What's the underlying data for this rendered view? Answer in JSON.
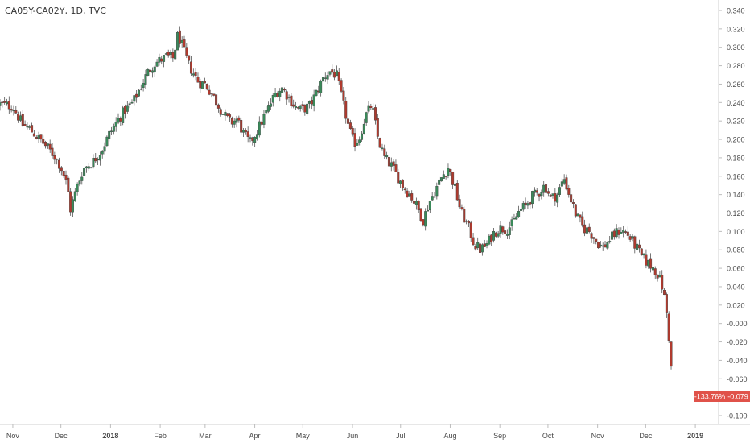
{
  "header": {
    "symbol_title": "CA05Y-CA02Y, 1D, TVC"
  },
  "price_labels": {
    "change": "-133.76%",
    "last": "-0.079"
  },
  "colors": {
    "up": "#3a8a5a",
    "down": "#b03a2e",
    "axis_text": "#4a4a4a",
    "grid": "#f0f0f0",
    "label_bg": "#e0524a",
    "label_text": "#ffffff"
  },
  "chart_data": {
    "type": "candlestick",
    "title": "CA05Y-CA02Y, 1D, TVC",
    "xlabel": "",
    "ylabel": "",
    "ylim": [
      -0.1,
      0.34
    ],
    "yticks": [
      "0.340",
      "0.320",
      "0.300",
      "0.280",
      "0.260",
      "0.240",
      "0.220",
      "0.200",
      "0.180",
      "0.160",
      "0.140",
      "0.120",
      "0.100",
      "0.080",
      "0.060",
      "0.040",
      "0.020",
      "-0.000",
      "-0.020",
      "-0.040",
      "-0.060",
      "-0.080",
      "-0.100"
    ],
    "ytick_values": [
      0.34,
      0.32,
      0.3,
      0.28,
      0.26,
      0.24,
      0.22,
      0.2,
      0.18,
      0.16,
      0.14,
      0.12,
      0.1,
      0.08,
      0.06,
      0.04,
      0.02,
      0.0,
      -0.02,
      -0.04,
      -0.06,
      -0.08,
      -0.1
    ],
    "xticks": [
      {
        "label": "Nov",
        "day": 0
      },
      {
        "label": "Dec",
        "day": 30
      },
      {
        "label": "2018",
        "day": 61
      },
      {
        "label": "Feb",
        "day": 92
      },
      {
        "label": "Mar",
        "day": 120
      },
      {
        "label": "Apr",
        "day": 151
      },
      {
        "label": "May",
        "day": 181
      },
      {
        "label": "Jun",
        "day": 212
      },
      {
        "label": "Jul",
        "day": 242
      },
      {
        "label": "Aug",
        "day": 273
      },
      {
        "label": "Sep",
        "day": 304
      },
      {
        "label": "Oct",
        "day": 334
      },
      {
        "label": "Nov",
        "day": 365
      },
      {
        "label": "Dec",
        "day": 395
      },
      {
        "label": "2019",
        "day": 426
      }
    ],
    "xrange_days": [
      -8,
      436
    ],
    "last_value": -0.079,
    "last_change": "-133.76%",
    "grid": false,
    "close_path": [
      [
        -8,
        0.238
      ],
      [
        0,
        0.236
      ],
      [
        6,
        0.216
      ],
      [
        10,
        0.212
      ],
      [
        14,
        0.205
      ],
      [
        18,
        0.198
      ],
      [
        22,
        0.19
      ],
      [
        26,
        0.182
      ],
      [
        30,
        0.17
      ],
      [
        34,
        0.15
      ],
      [
        36,
        0.124
      ],
      [
        40,
        0.148
      ],
      [
        44,
        0.168
      ],
      [
        50,
        0.176
      ],
      [
        56,
        0.19
      ],
      [
        60,
        0.205
      ],
      [
        66,
        0.222
      ],
      [
        70,
        0.232
      ],
      [
        75,
        0.24
      ],
      [
        80,
        0.258
      ],
      [
        84,
        0.272
      ],
      [
        88,
        0.282
      ],
      [
        92,
        0.286
      ],
      [
        96,
        0.29
      ],
      [
        100,
        0.288
      ],
      [
        103,
        0.314
      ],
      [
        106,
        0.3
      ],
      [
        110,
        0.28
      ],
      [
        116,
        0.262
      ],
      [
        120,
        0.26
      ],
      [
        124,
        0.25
      ],
      [
        128,
        0.238
      ],
      [
        132,
        0.226
      ],
      [
        136,
        0.218
      ],
      [
        140,
        0.222
      ],
      [
        144,
        0.206
      ],
      [
        148,
        0.196
      ],
      [
        152,
        0.208
      ],
      [
        156,
        0.222
      ],
      [
        160,
        0.236
      ],
      [
        164,
        0.25
      ],
      [
        168,
        0.256
      ],
      [
        172,
        0.246
      ],
      [
        176,
        0.236
      ],
      [
        180,
        0.232
      ],
      [
        185,
        0.236
      ],
      [
        190,
        0.252
      ],
      [
        194,
        0.268
      ],
      [
        198,
        0.274
      ],
      [
        202,
        0.27
      ],
      [
        206,
        0.24
      ],
      [
        210,
        0.21
      ],
      [
        213,
        0.196
      ],
      [
        216,
        0.2
      ],
      [
        220,
        0.225
      ],
      [
        224,
        0.238
      ],
      [
        228,
        0.2
      ],
      [
        232,
        0.18
      ],
      [
        236,
        0.172
      ],
      [
        240,
        0.16
      ],
      [
        244,
        0.148
      ],
      [
        248,
        0.14
      ],
      [
        252,
        0.128
      ],
      [
        256,
        0.112
      ],
      [
        260,
        0.132
      ],
      [
        264,
        0.146
      ],
      [
        268,
        0.16
      ],
      [
        272,
        0.17
      ],
      [
        276,
        0.146
      ],
      [
        280,
        0.12
      ],
      [
        284,
        0.106
      ],
      [
        288,
        0.086
      ],
      [
        292,
        0.08
      ],
      [
        296,
        0.086
      ],
      [
        300,
        0.098
      ],
      [
        304,
        0.104
      ],
      [
        308,
        0.102
      ],
      [
        312,
        0.108
      ],
      [
        316,
        0.122
      ],
      [
        320,
        0.128
      ],
      [
        324,
        0.138
      ],
      [
        328,
        0.142
      ],
      [
        332,
        0.15
      ],
      [
        336,
        0.136
      ],
      [
        340,
        0.14
      ],
      [
        344,
        0.158
      ],
      [
        348,
        0.136
      ],
      [
        352,
        0.116
      ],
      [
        356,
        0.104
      ],
      [
        360,
        0.1
      ],
      [
        364,
        0.09
      ],
      [
        368,
        0.082
      ],
      [
        372,
        0.09
      ],
      [
        376,
        0.098
      ],
      [
        380,
        0.102
      ],
      [
        384,
        0.096
      ],
      [
        388,
        0.086
      ],
      [
        392,
        0.074
      ],
      [
        396,
        0.066
      ],
      [
        400,
        0.06
      ],
      [
        403,
        0.052
      ],
      [
        406,
        0.036
      ],
      [
        408,
        0.012
      ],
      [
        410,
        -0.024
      ],
      [
        412,
        -0.079
      ]
    ]
  }
}
